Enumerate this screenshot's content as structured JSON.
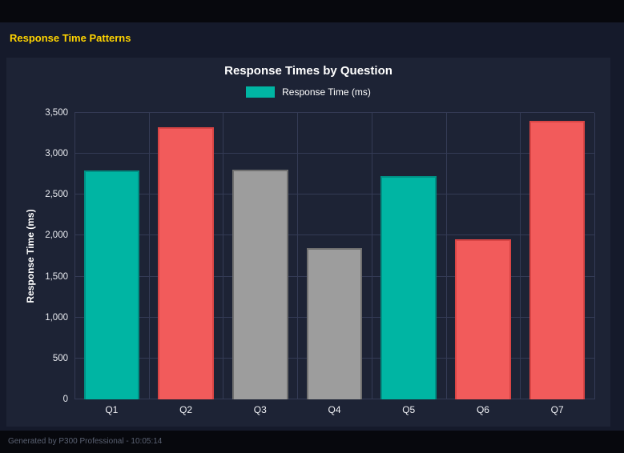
{
  "page": {
    "title": "Response Time Patterns",
    "footer": "Generated by P300 Professional - 10:05:14"
  },
  "chart_data": {
    "type": "bar",
    "title": "Response Times by Question",
    "legend_label": "Response Time (ms)",
    "legend_color": "#00b5a3",
    "legend_position": "top",
    "xlabel": "",
    "ylabel": "Response Time (ms)",
    "ylim": [
      0,
      3500
    ],
    "grid": true,
    "categories": [
      "Q1",
      "Q2",
      "Q3",
      "Q4",
      "Q5",
      "Q6",
      "Q7"
    ],
    "values": [
      2800,
      3320,
      2810,
      1850,
      2730,
      1960,
      3400
    ],
    "bar_colors": [
      "#00b5a3",
      "#f25b5b",
      "#9d9d9d",
      "#9d9d9d",
      "#00b5a3",
      "#f25b5b",
      "#f25b5b"
    ],
    "bar_border_colors": [
      "#008f84",
      "#d94545",
      "#707070",
      "#707070",
      "#008f84",
      "#d94545",
      "#d94545"
    ],
    "ytick_labels": [
      "0",
      "500",
      "1,000",
      "1,500",
      "2,000",
      "2,500",
      "3,000",
      "3,500"
    ],
    "ytick_values": [
      0,
      500,
      1000,
      1500,
      2000,
      2500,
      3000,
      3500
    ]
  }
}
